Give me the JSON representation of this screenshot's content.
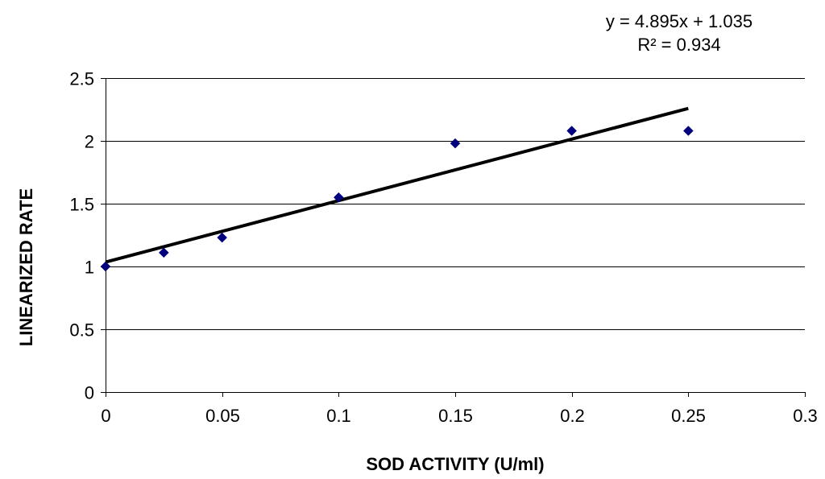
{
  "chart_data": {
    "type": "scatter",
    "title": "",
    "xlabel": "SOD ACTIVITY (U/ml)",
    "ylabel": "LINEARIZED RATE",
    "xlim": [
      0,
      0.3
    ],
    "ylim": [
      0,
      2.5
    ],
    "x_ticks": [
      0,
      0.05,
      0.1,
      0.15,
      0.2,
      0.25,
      0.3
    ],
    "y_ticks": [
      0,
      0.5,
      1,
      1.5,
      2,
      2.5
    ],
    "x_tick_labels": [
      "0",
      "0.05",
      "0.1",
      "0.15",
      "0.2",
      "0.25",
      "0.3"
    ],
    "y_tick_labels": [
      "0",
      "0.5",
      "1",
      "1.5",
      "2",
      "2.5"
    ],
    "grid": "horizontal",
    "series": [
      {
        "name": "data",
        "marker": "diamond",
        "color": "#00007F",
        "points": [
          {
            "x": 0,
            "y": 1.0
          },
          {
            "x": 0.025,
            "y": 1.11
          },
          {
            "x": 0.05,
            "y": 1.23
          },
          {
            "x": 0.1,
            "y": 1.55
          },
          {
            "x": 0.15,
            "y": 1.98
          },
          {
            "x": 0.2,
            "y": 2.08
          },
          {
            "x": 0.25,
            "y": 2.08
          }
        ]
      }
    ],
    "trendline": {
      "type": "linear",
      "slope": 4.895,
      "intercept": 1.035,
      "x_range": [
        0,
        0.25
      ],
      "color": "#000000",
      "equation_text": "y = 4.895x + 1.035",
      "r2_text": "R² = 0.934"
    }
  }
}
